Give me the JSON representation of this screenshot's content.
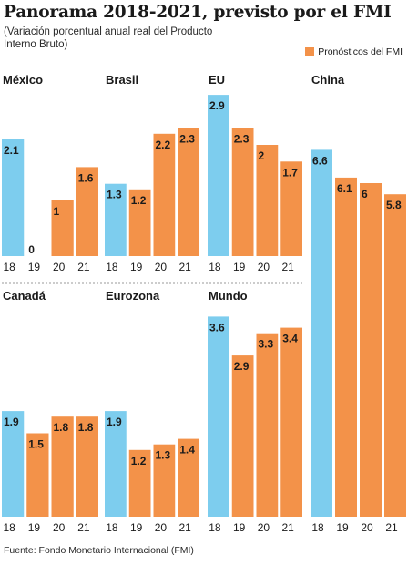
{
  "title": "Panorama 2018-2021, previsto por el FMI",
  "subtitle": "(Variación porcentual anual real del Producto Interno Bruto)",
  "legend": {
    "label": "Pronósticos del FMI"
  },
  "source": "Fuente: Fondo Monetario Internacional (FMI)",
  "colors": {
    "actual": "#7dcdee",
    "forecast": "#f39249",
    "text": "#1a1a1a"
  },
  "chart_data": [
    {
      "type": "bar",
      "title": "México",
      "categories": [
        "18",
        "19",
        "20",
        "21"
      ],
      "values": [
        2.1,
        0,
        1,
        1.6
      ],
      "labels": [
        "2.1",
        "0",
        "1",
        "1.6"
      ]
    },
    {
      "type": "bar",
      "title": "Brasil",
      "categories": [
        "18",
        "19",
        "20",
        "21"
      ],
      "values": [
        1.3,
        1.2,
        2.2,
        2.3
      ],
      "labels": [
        "1.3",
        "1.2",
        "2.2",
        "2.3"
      ]
    },
    {
      "type": "bar",
      "title": "EU",
      "categories": [
        "18",
        "19",
        "20",
        "21"
      ],
      "values": [
        2.9,
        2.3,
        2,
        1.7
      ],
      "labels": [
        "2.9",
        "2.3",
        "2",
        "1.7"
      ]
    },
    {
      "type": "bar",
      "title": "China",
      "categories": [
        "18",
        "19",
        "20",
        "21"
      ],
      "values": [
        6.6,
        6.1,
        6,
        5.8
      ],
      "labels": [
        "6.6",
        "6.1",
        "6",
        "5.8"
      ]
    },
    {
      "type": "bar",
      "title": "Canadá",
      "categories": [
        "18",
        "19",
        "20",
        "21"
      ],
      "values": [
        1.9,
        1.5,
        1.8,
        1.8
      ],
      "labels": [
        "1.9",
        "1.5",
        "1.8",
        "1.8"
      ]
    },
    {
      "type": "bar",
      "title": "Eurozona",
      "categories": [
        "18",
        "19",
        "20",
        "21"
      ],
      "values": [
        1.9,
        1.2,
        1.3,
        1.4
      ],
      "labels": [
        "1.9",
        "1.2",
        "1.3",
        "1.4"
      ]
    },
    {
      "type": "bar",
      "title": "Mundo",
      "categories": [
        "18",
        "19",
        "20",
        "21"
      ],
      "values": [
        3.6,
        2.9,
        3.3,
        3.4
      ],
      "labels": [
        "3.6",
        "2.9",
        "3.3",
        "3.4"
      ]
    }
  ]
}
